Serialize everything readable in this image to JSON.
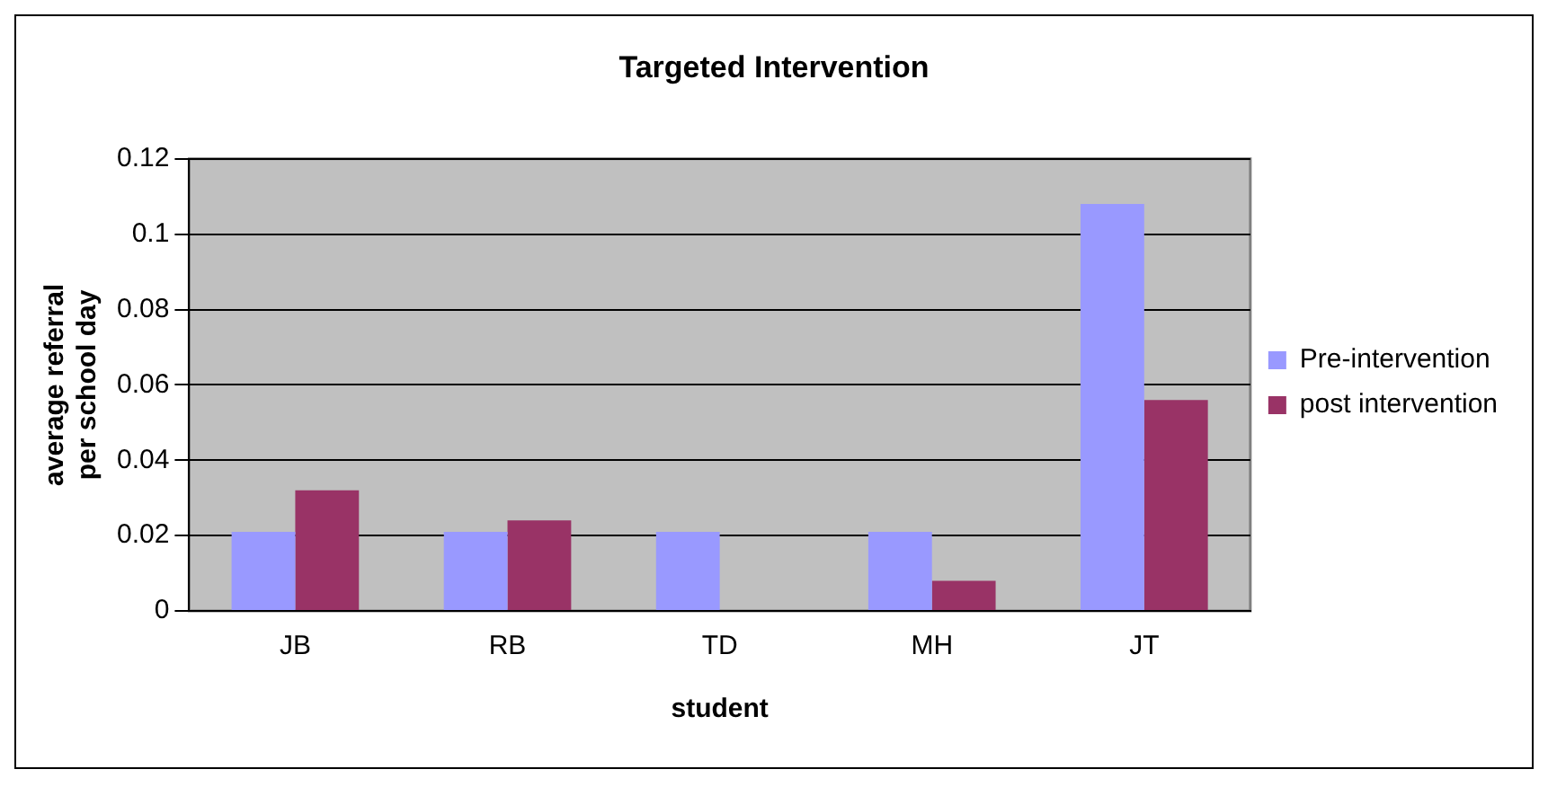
{
  "chart_data": {
    "type": "bar",
    "title": "Targeted Intervention",
    "xlabel": "student",
    "ylabel": "average referral per school day",
    "categories": [
      "JB",
      "RB",
      "TD",
      "MH",
      "JT"
    ],
    "series": [
      {
        "name": "Pre-intervention",
        "color": "#9999ff",
        "values": [
          0.021,
          0.021,
          0.021,
          0.021,
          0.108
        ]
      },
      {
        "name": "post intervention",
        "color": "#993366",
        "values": [
          0.032,
          0.024,
          0.0,
          0.008,
          0.056
        ]
      }
    ],
    "ylim": [
      0,
      0.12
    ],
    "yticks": [
      0,
      0.02,
      0.04,
      0.06,
      0.08,
      0.1,
      0.12
    ],
    "grid": "y",
    "legend": "right"
  }
}
